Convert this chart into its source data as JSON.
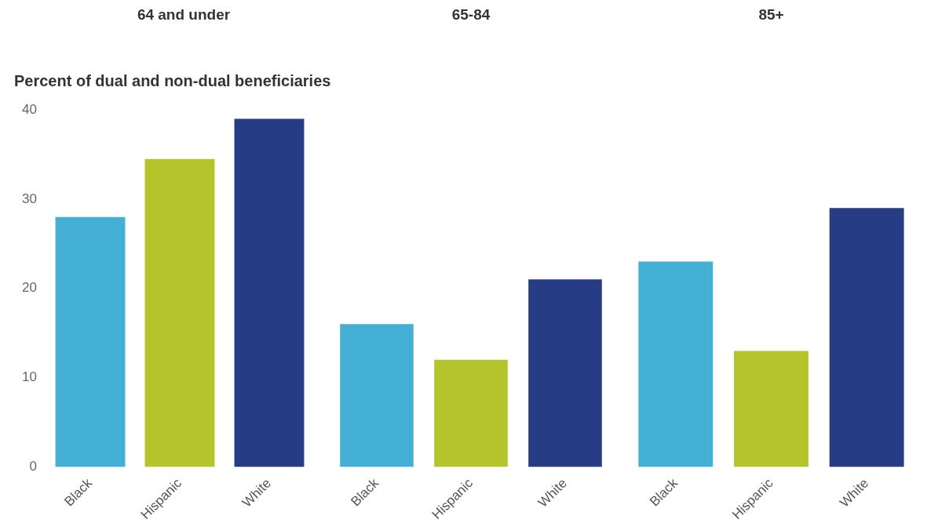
{
  "chart_data": [
    {
      "type": "bar",
      "title": "64 and under",
      "ylabel": "Percent of dual and non-dual beneficiaries",
      "categories": [
        "Black",
        "Hispanic",
        "White"
      ],
      "values": [
        28,
        34.5,
        39
      ],
      "colors": [
        "#45b0d6",
        "#b5c42a",
        "#263c85"
      ],
      "ylim": [
        0,
        40
      ],
      "yticks": [
        0,
        10,
        20,
        30,
        40
      ]
    },
    {
      "type": "bar",
      "title": "65-84",
      "categories": [
        "Black",
        "Hispanic",
        "White"
      ],
      "values": [
        16,
        12,
        21
      ],
      "colors": [
        "#45b0d6",
        "#b5c42a",
        "#263c85"
      ],
      "ylim": [
        0,
        40
      ],
      "yticks": [
        0,
        10,
        20,
        30,
        40
      ],
      "tick_labels": "x"
    },
    {
      "type": "bar",
      "title": "85+",
      "categories": [
        "Black",
        "Hispanic",
        "White"
      ],
      "values": [
        23,
        13,
        29
      ],
      "colors": [
        "#45b0d6",
        "#b5c42a",
        "#263c85"
      ],
      "ylim": [
        0,
        40
      ],
      "yticks": [
        0,
        10,
        20,
        30,
        40
      ],
      "tick_labels": "x"
    }
  ]
}
